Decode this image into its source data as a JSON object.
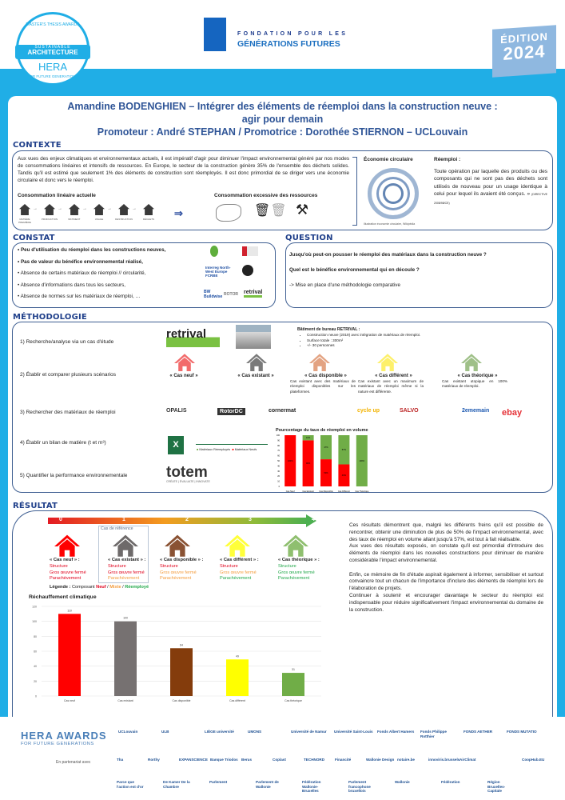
{
  "header": {
    "hera_badge": {
      "top": "MASTER'S THESIS AWARDS",
      "mid1": "SUSTAINABLE",
      "mid2": "ARCHITECTURE",
      "brand": "HERA",
      "bottom": "FOR FUTURE GENERATIONS"
    },
    "foundation": {
      "line1": "FONDATION POUR LES",
      "line2": "GÉNÉRATIONS FUTURES"
    },
    "edition": {
      "label": "ÉDITION",
      "year": "2024"
    }
  },
  "title": {
    "line1": "Amandine BODENGHIEN – Intégrer des éléments de réemploi dans la construction neuve :",
    "line2": "agir pour demain",
    "line3": "Promoteur : André STEPHAN / Promotrice : Dorothée STIERNON – UCLouvain"
  },
  "contexte": {
    "heading": "CONTEXTE",
    "text": "Aux vues des enjeux climatiques et environnementaux actuels, il est impératif d'agir pour diminuer l'impact environnemental généré par nos modes de consommations linéaires et intensifs de ressources. En Europe, le secteur de la construction génère 35% de l'ensemble des déchets solides. Tandis qu'il est estimé que seulement 1% des éléments de construction sont réemployés. Il est donc primordial de se diriger vers une économie circulaire et donc vers le réemploi.",
    "linear_title": "Consommation linéaire actuelle",
    "linear_steps": [
      "MATIÈRE PREMIÈRE",
      "PRODUCTION",
      "BATIMENT",
      "USAGE",
      "DESTRUCTION",
      "DÉCHETS"
    ],
    "excess_title": "Consommation excessive des ressources",
    "circular_title": "Économie circulaire",
    "circular_caption": "Illustration économie circulaire, Wikipédia",
    "reemploi_title": "Réemploi :",
    "reemploi_text": "Toute opération par laquelle des produits ou des composants qui ne sont pas des déchets sont utilisés de nouveau pour un usage identique à celui pour lequel ils avaient été conçus. »",
    "reemploi_source": "(DIRECTIVE 2008/98/CE)"
  },
  "constat": {
    "heading": "CONSTAT",
    "items": [
      {
        "text": "Peu d'utilisation du réemploi dans les constructions neuves,",
        "bold": true
      },
      {
        "text": "Pas de valeur du bénéfice environnemental réalisé,",
        "bold": true
      },
      {
        "text": "Absence de certains matériaux de réemploi // circularité,",
        "bold": false
      },
      {
        "text": "Absence d'informations dans tous les secteurs,",
        "bold": false
      },
      {
        "text": "Absence de normes sur les matériaux de réemploi, …",
        "bold": false
      }
    ],
    "logos": [
      "Interreg North-West Europe FCRBE",
      "retrival",
      "BW Buildwise",
      "ROTOR"
    ]
  },
  "question": {
    "heading": "QUESTION",
    "q1": "Jusqu'où peut-on pousser le réemploi des matériaux dans la construction neuve ?",
    "q2": "Quel est le bénéfice environnemental qui en découle ?",
    "answer": "-> Mise en place d'une méthodologie comparative"
  },
  "methodologie": {
    "heading": "MÉTHODOLOGIE",
    "steps": [
      "1) Recherche/analyse via un cas d'étude",
      "2) Établir et comparer plusieurs scénarios",
      "3) Rechercher des matériaux de réemploi",
      "4) Établir un bilan de matière  (t et m³)",
      "5) Quantifier la performance environnementale"
    ],
    "retrival_logo": "retrival",
    "building_title": "Bâtiment de bureau RETRIVAL :",
    "building_items": [
      "Construction neuve (2019) avec intégration de matériaux de réemploi.",
      "Surface totale : 300m²",
      "+/- 30 personnes"
    ],
    "scenarios": [
      {
        "name": "« Cas neuf »",
        "desc": "",
        "color": "#f26b6b"
      },
      {
        "name": "« Cas existant »",
        "desc": "",
        "color": "#7a7a7a"
      },
      {
        "name": "« Cas disponible »",
        "desc": "Cas existant avec des matériaux de réemploi disponibles sur les plateformes.",
        "color": "#e3a382"
      },
      {
        "name": "« Cas différent »",
        "desc": "Cas existant avec un maximum de matériaux de réemploi même si la nature est différente.",
        "color": "#fdf06a"
      },
      {
        "name": "« Cas théorique »",
        "desc": "Cas existant utopique en 100% matériaux de réemploi.",
        "color": "#9fc088"
      }
    ],
    "platforms": [
      "OPALIS",
      "RotorDC",
      "cornermat",
      "cycle up",
      "SALVO",
      "2ememain",
      "ebay"
    ],
    "excel_legend": [
      "Matériaux Réemployés",
      "Matériaux Neufs"
    ],
    "totem": {
      "name": "totem",
      "tagline": "CRÉATE | ÉVALUATE | INNOVATE"
    }
  },
  "resultat": {
    "heading": "RÉSULTAT",
    "scale": [
      "0",
      "1",
      "2",
      "3",
      "4"
    ],
    "reference_label": "Cas de référence",
    "cases": [
      {
        "name": "« Cas neuf » :",
        "color": "#ff0000",
        "components": [
          {
            "t": "Structure",
            "c": "red"
          },
          {
            "t": "Gros œuvre fermé",
            "c": "red"
          },
          {
            "t": "Parachèvement",
            "c": "red"
          }
        ]
      },
      {
        "name": "« Cas existant » :",
        "color": "#6e6a6a",
        "components": [
          {
            "t": "Structure",
            "c": "red"
          },
          {
            "t": "Gros œuvre fermé",
            "c": "red"
          },
          {
            "t": "Parachèvement",
            "c": "ora"
          }
        ]
      },
      {
        "name": "« Cas disponible » :",
        "color": "#8a5233",
        "components": [
          {
            "t": "Structure",
            "c": "red"
          },
          {
            "t": "Gros œuvre fermé",
            "c": "ora"
          },
          {
            "t": "Parachèvement",
            "c": "ora"
          }
        ]
      },
      {
        "name": "« Cas différent » :",
        "color": "#ffff3a",
        "components": [
          {
            "t": "Structure",
            "c": "red"
          },
          {
            "t": "Gros œuvre fermé",
            "c": "ora"
          },
          {
            "t": "Parachèvement",
            "c": "grn"
          }
        ]
      },
      {
        "name": "« Cas théorique » :",
        "color": "#8fbf6f",
        "components": [
          {
            "t": "Structure",
            "c": "grn"
          },
          {
            "t": "Gros œuvre fermé",
            "c": "grn"
          },
          {
            "t": "Parachèvement",
            "c": "grn"
          }
        ]
      }
    ],
    "legend": {
      "label": "Légende :",
      "component": "Composant",
      "neuf": "Neuf",
      "mixte": "Mixte",
      "reemploye": "Réemployé"
    },
    "conclusion": [
      "Ces résultats démontrent que, malgré les différents freins qu'il est possible de rencontrer, obtenir une diminution de plus de 50% de l'impact environnemental, avec des taux de réemploi en volume allant jusqu'à 57%, est tout à fait réalisable.",
      "Aux vues des résultats exposés, on constate qu'il est primordial d'introduire des éléments de réemploi dans les nouvelles constructions pour diminuer de manière considérable l'impact environnemental.",
      "",
      "Enfin, ce mémoire de fin d'étude aspirait également à informer, sensibiliser et surtout convaincre tout un chacun de l'importance d'inclure des éléments de réemploi lors de l'élaboration de projets.",
      "Continuer à soutenir et encourager davantage le secteur du réemploi est indispensable pour réduire significativement l'impact environnemental du domaine de la construction."
    ]
  },
  "chart_data": [
    {
      "type": "bar",
      "stacked": true,
      "title": "Pourcentage du taux de réemploi en volume",
      "categories": [
        "Cas Neuf",
        "Cas Existant",
        "Cas Disponible",
        "Cas Différent",
        "Cas Théorique"
      ],
      "series": [
        {
          "name": "Matériaux Neufs",
          "values": [
            100,
            90,
            53,
            43,
            0
          ],
          "color": "#ff0000"
        },
        {
          "name": "Matériaux Réemployés",
          "values": [
            0,
            10,
            47,
            57,
            100
          ],
          "color": "#70ad47"
        }
      ],
      "ylim": [
        0,
        100
      ],
      "yticks": [
        0,
        10,
        20,
        30,
        40,
        50,
        60,
        70,
        80,
        90,
        100
      ],
      "legend": "left",
      "grid": false
    },
    {
      "type": "bar",
      "title": "Réchauffement climatique",
      "categories": [
        "Cas neuf",
        "Cas existant",
        "Cas disponible",
        "Cas différent",
        "Cas théorique"
      ],
      "values": [
        110,
        100,
        64,
        49,
        31
      ],
      "colors": [
        "#ff0000",
        "#767171",
        "#843c0c",
        "#ffff00",
        "#70ad47"
      ],
      "ylim": [
        0,
        120
      ],
      "yticks": [
        0,
        20,
        40,
        60,
        80,
        100,
        120
      ],
      "grid": true
    }
  ],
  "footer": {
    "hera_awards": "HERA AWARDS",
    "hera_sub": "FOR FUTURE GENERATIONS",
    "partnership": "En partenariat avec",
    "logos_row1": [
      "UCLouvain",
      "ULB",
      "LIÈGE université",
      "UMONS",
      "Université de Namur",
      "Université Saint-Louis",
      "Fonds Albert Hamers",
      "Fonds Philippe Rotthier",
      "FONDS AETHER",
      "FONDS MUTATIO"
    ],
    "logos_row2": [
      "Tha",
      "Rorthy",
      "EXPANSCIENCE",
      "Banque Triodos",
      "Berus",
      "Coplast",
      "TECHNORD",
      "Financité",
      "Wallonie Design",
      "notaire.be",
      "innoviris.brussels",
      "AirClimat",
      "",
      "CoopHub.EU"
    ],
    "logos_row3": [
      "Parce que l'action est d'or",
      "De Kamer De la Chambre",
      "Parlement",
      "Parlement de Wallonie",
      "Fédération Wallonie-Bruxelles",
      "Parlement francophone bruxellois",
      "Wallonie",
      "Fédération",
      "Région Bruxelles-Capitale"
    ]
  }
}
